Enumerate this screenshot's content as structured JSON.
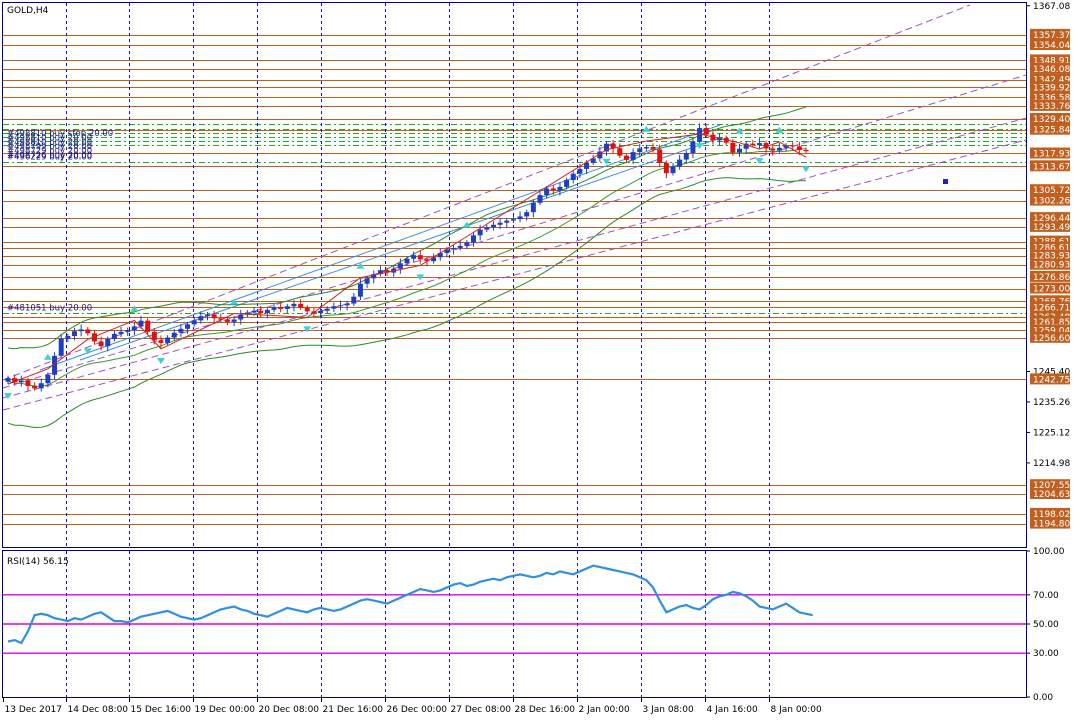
{
  "symbol": "GOLD,H4",
  "colors": {
    "bg": "#ffffff",
    "border": "#00008b",
    "bull": "#1f3fbf",
    "bear": "#e01010",
    "level_line": "#c06020",
    "level_label_bg": "#c06020",
    "level_label_text": "#ffffff",
    "order_line": "#2ea02e",
    "vsep": "#1010d0",
    "channel": "#a050c0",
    "fib_channel": "#3b8fe0",
    "zigzag": "#d02020",
    "band_upper": "#2a8a2a",
    "band_lower": "#2a8a2a",
    "fractal": "#3fd0d0",
    "rsi_line": "#2f8fe0",
    "rsi_level": "#e000e0",
    "marker": "#2020d0"
  },
  "orders": [
    {
      "text": "#498810 buy stop 20.00",
      "price": 1327.6
    },
    {
      "text": "#498810 buy 20.00",
      "price": 1326.2
    },
    {
      "text": "#498810 buy 20.00",
      "price": 1324.8
    },
    {
      "text": "#498799 buy 20.00",
      "price": 1323.4
    },
    {
      "text": "#498729 buy 20.00",
      "price": 1322.0
    },
    {
      "text": "#498726 buy 20.00",
      "price": 1320.6
    },
    {
      "text": "#496229 buy 20.00",
      "price": 1315.2
    },
    {
      "text": "#481051 buy 20.00",
      "price": 1265.0
    }
  ],
  "chart_data": [
    {
      "type": "candlestick",
      "title": "GOLD,H4",
      "ylim": [
        1187.0,
        1368.0
      ],
      "price_ticks": [
        "1367.08",
        "1245.40",
        "1235.26",
        "1225.12",
        "1214.98"
      ],
      "level_labels": [
        "1357.37",
        "1354.04",
        "1348.91",
        "1346.08",
        "1342.49",
        "1339.92",
        "1336.58",
        "1333.76",
        "1329.40",
        "1325.84",
        "1317.93",
        "1313.67",
        "1305.72",
        "1302.26",
        "1296.44",
        "1293.49",
        "1288.61",
        "1286.61",
        "1283.93",
        "1280.93",
        "1276.86",
        "1273.00",
        "1268.76",
        "1266.71",
        "1263.48",
        "1261.85",
        "1259.04",
        "1256.60",
        "1242.75",
        "1207.55",
        "1204.63",
        "1198.02",
        "1194.80"
      ],
      "x_ticks": [
        "13 Dec 2017",
        "14 Dec 08:00",
        "15 Dec 16:00",
        "19 Dec 00:00",
        "20 Dec 08:00",
        "21 Dec 16:00",
        "26 Dec 00:00",
        "27 Dec 08:00",
        "28 Dec 16:00",
        "2 Jan 00:00",
        "3 Jan 08:00",
        "4 Jan 16:00",
        "8 Jan 00:00"
      ],
      "candles_close": [
        1243.2,
        1241.8,
        1242.4,
        1240.6,
        1239.8,
        1241.5,
        1244.3,
        1250.6,
        1256.3,
        1257.2,
        1258.8,
        1259.4,
        1258.1,
        1255.4,
        1253.8,
        1256.2,
        1257.9,
        1258.6,
        1259.2,
        1260.4,
        1262.3,
        1258.6,
        1255.8,
        1254.9,
        1256.7,
        1258.3,
        1259.6,
        1261.1,
        1262.4,
        1263.8,
        1264.4,
        1263.1,
        1262.6,
        1261.9,
        1262.7,
        1264.3,
        1265.0,
        1265.6,
        1264.8,
        1265.9,
        1266.8,
        1266.2,
        1267.1,
        1267.9,
        1266.7,
        1265.4,
        1264.8,
        1265.6,
        1266.3,
        1267.1,
        1267.4,
        1268.0,
        1270.3,
        1274.6,
        1276.4,
        1277.8,
        1279.1,
        1278.3,
        1279.6,
        1281.4,
        1282.9,
        1284.1,
        1282.7,
        1282.1,
        1283.4,
        1284.8,
        1286.0,
        1286.5,
        1287.2,
        1288.3,
        1290.7,
        1292.6,
        1293.4,
        1294.2,
        1294.9,
        1295.6,
        1296.1,
        1297.0,
        1298.4,
        1301.5,
        1304.1,
        1306.3,
        1305.6,
        1306.8,
        1309.1,
        1311.2,
        1312.8,
        1314.9,
        1316.3,
        1318.6,
        1321.2,
        1319.7,
        1317.2,
        1315.8,
        1318.4,
        1319.6,
        1320.1,
        1319.3,
        1314.8,
        1311.4,
        1313.6,
        1315.9,
        1318.1,
        1321.8,
        1326.4,
        1324.2,
        1322.3,
        1323.1,
        1321.5,
        1318.3,
        1319.5,
        1321.2,
        1320.7,
        1321.4,
        1319.6,
        1318.9,
        1319.8,
        1320.6,
        1320.3,
        1319.1,
        1318.7
      ]
    },
    {
      "type": "line",
      "title": "RSI(14) 56.15",
      "ylim": [
        0,
        100
      ],
      "y_ticks": [
        "100.00",
        "70.00",
        "50.00",
        "30.00",
        "0.00"
      ],
      "levels": [
        70,
        50,
        30
      ],
      "values": [
        38,
        39,
        37,
        45,
        56,
        57,
        56,
        54,
        53,
        52,
        54,
        53,
        55,
        57,
        58,
        55,
        52,
        52,
        51,
        53,
        55,
        56,
        57,
        58,
        59,
        57,
        55,
        54,
        53,
        54,
        56,
        58,
        60,
        61,
        62,
        60,
        59,
        57,
        56,
        55,
        57,
        59,
        61,
        60,
        59,
        58,
        60,
        61,
        60,
        59,
        60,
        62,
        64,
        66,
        67,
        66,
        65,
        64,
        66,
        68,
        70,
        72,
        74,
        73,
        72,
        73,
        75,
        77,
        78,
        76,
        77,
        79,
        80,
        81,
        80,
        82,
        83,
        84,
        83,
        82,
        83,
        85,
        84,
        86,
        85,
        84,
        86,
        88,
        90,
        89,
        88,
        87,
        86,
        85,
        84,
        82,
        80,
        75,
        66,
        58,
        60,
        62,
        63,
        61,
        60,
        63,
        67,
        69,
        70,
        72,
        71,
        69,
        66,
        62,
        61,
        60,
        62,
        64,
        61,
        58,
        57,
        56
      ]
    }
  ]
}
